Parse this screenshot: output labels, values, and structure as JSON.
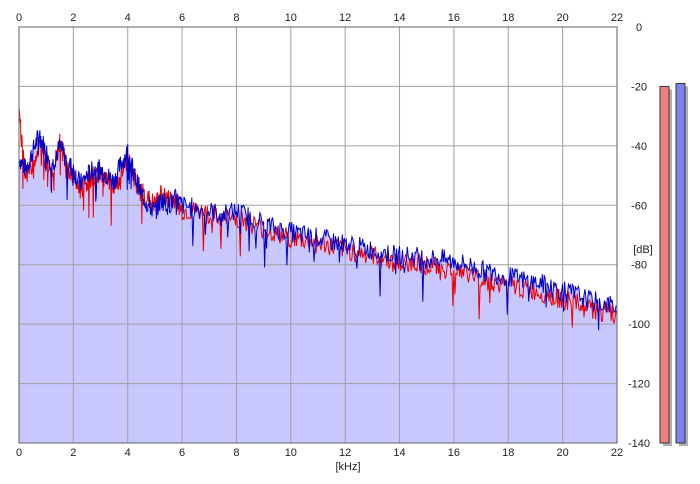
{
  "chart_data": {
    "type": "line",
    "title": "",
    "xlabel": "[kHz]",
    "ylabel": "[dB]",
    "xlim": [
      0,
      22
    ],
    "ylim": [
      -140,
      0
    ],
    "grid": true,
    "x_ticks": [
      0,
      2,
      4,
      6,
      8,
      10,
      12,
      14,
      16,
      18,
      20,
      22
    ],
    "y_ticks": [
      0,
      -20,
      -40,
      -60,
      -80,
      -100,
      -120,
      -140
    ],
    "x": [
      0,
      0.25,
      0.5,
      0.75,
      1,
      1.25,
      1.5,
      1.75,
      2,
      2.25,
      2.5,
      2.75,
      3,
      3.25,
      3.5,
      3.75,
      4,
      4.25,
      4.5,
      4.75,
      5,
      5.25,
      5.5,
      5.75,
      6,
      6.5,
      7,
      7.5,
      8,
      8.5,
      9,
      9.5,
      10,
      10.5,
      11,
      11.5,
      12,
      12.5,
      13,
      13.5,
      14,
      14.5,
      15,
      15.5,
      16,
      16.5,
      17,
      17.5,
      18,
      18.5,
      19,
      19.5,
      20,
      20.5,
      21,
      21.5,
      22
    ],
    "series": [
      {
        "name": "",
        "color": "#ee0000",
        "values": [
          -30,
          -50,
          -46,
          -40,
          -45,
          -48,
          -38,
          -47,
          -51,
          -55,
          -52,
          -50,
          -50,
          -52,
          -55,
          -50,
          -44,
          -52,
          -55,
          -58,
          -60,
          -56,
          -58,
          -58,
          -62,
          -62,
          -63,
          -65,
          -64,
          -66,
          -68,
          -70,
          -71,
          -72,
          -73,
          -74,
          -75,
          -76,
          -77,
          -78,
          -80,
          -79,
          -80,
          -81,
          -82,
          -83,
          -85,
          -86,
          -87,
          -88,
          -89,
          -90,
          -92,
          -93,
          -95,
          -96,
          -97
        ]
      },
      {
        "name": "",
        "color": "#0000cc",
        "values": [
          -44,
          -48,
          -42,
          -36,
          -42,
          -46,
          -40,
          -45,
          -48,
          -53,
          -50,
          -48,
          -48,
          -50,
          -52,
          -46,
          -42,
          -50,
          -56,
          -60,
          -62,
          -58,
          -60,
          -58,
          -60,
          -61,
          -62,
          -63,
          -62,
          -64,
          -66,
          -68,
          -69,
          -70,
          -71,
          -72,
          -73,
          -74,
          -75,
          -76,
          -77,
          -77,
          -78,
          -78,
          -79,
          -80,
          -82,
          -83,
          -84,
          -85,
          -86,
          -87,
          -89,
          -90,
          -92,
          -93,
          -94
        ]
      }
    ],
    "level_meters": [
      {
        "color": "#f08080",
        "level_db": -20
      },
      {
        "color": "#8080f0",
        "level_db": -19
      }
    ],
    "colors": {
      "background": "#ffffff",
      "fill": "#c8c8ff",
      "grid": "#a0a0a0",
      "axis": "#606060"
    }
  }
}
